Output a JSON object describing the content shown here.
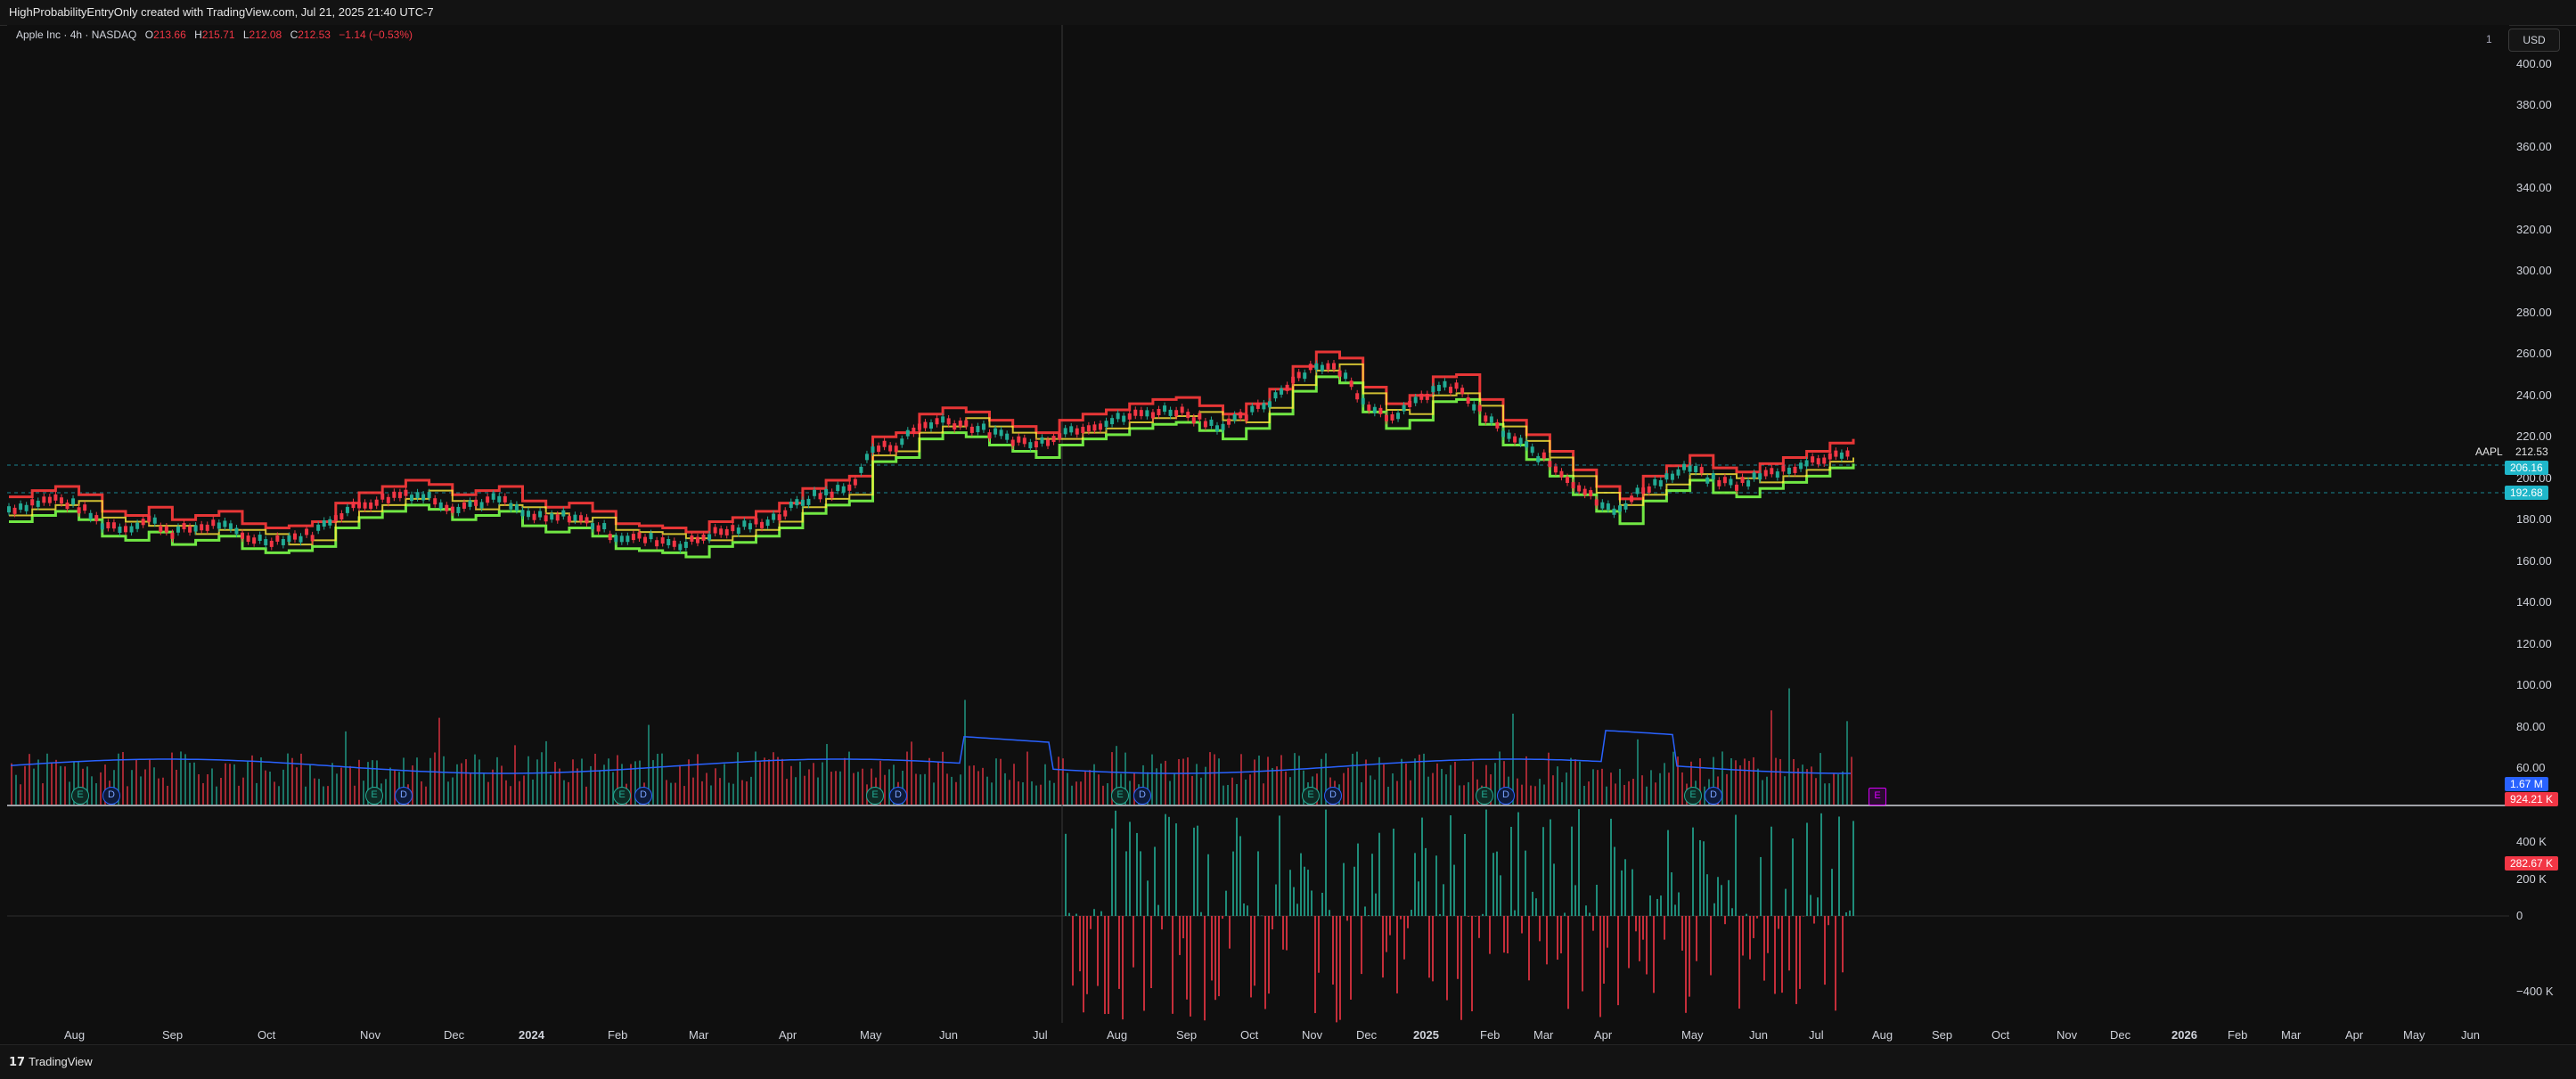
{
  "header": {
    "title": "HighProbabilityEntryOnly created with TradingView.com, Jul 21, 2025 21:40 UTC-7"
  },
  "legend": {
    "symbol": "Apple Inc · 4h · NASDAQ",
    "o_label": "O",
    "o_value": "213.66",
    "h_label": "H",
    "h_value": "215.71",
    "l_label": "L",
    "l_value": "212.08",
    "c_label": "C",
    "c_value": "212.53",
    "change": "−1.14 (−0.53%)"
  },
  "toolbar": {
    "currency": "USD",
    "indicator_count": "1"
  },
  "price_axis": {
    "ticks": [
      "400.00",
      "380.00",
      "360.00",
      "340.00",
      "320.00",
      "300.00",
      "280.00",
      "260.00",
      "240.00",
      "220.00",
      "200.00",
      "180.00",
      "160.00",
      "140.00",
      "120.00",
      "100.00",
      "80.00",
      "60.00"
    ],
    "ticker_label": "AAPL",
    "last_price": "212.53",
    "tag_upper": "206.16",
    "tag_lower": "192.68",
    "vol_tag_blue": "1.67 M",
    "vol_tag_red": "924.21 K",
    "osc_ticks": [
      "400 K",
      "200 K",
      "0",
      "−400 K"
    ],
    "osc_tag": "282.67 K"
  },
  "time_axis": {
    "labels": [
      "Aug",
      "Sep",
      "Oct",
      "Nov",
      "Dec",
      "2024",
      "Feb",
      "Mar",
      "Apr",
      "May",
      "Jun",
      "Jul",
      "Aug",
      "Sep",
      "Oct",
      "Nov",
      "Dec",
      "2025",
      "Feb",
      "Mar",
      "Apr",
      "May",
      "Jun",
      "Jul",
      "Aug",
      "Sep",
      "Oct",
      "Nov",
      "Dec",
      "2026",
      "Feb",
      "Mar",
      "Apr",
      "May",
      "Jun"
    ]
  },
  "events": {
    "earnings_label": "E",
    "dividend_label": "D",
    "future_label": "E"
  },
  "footer": {
    "brand": "TradingView",
    "brand_mark": "17"
  },
  "colors": {
    "up": "#22ab94",
    "down": "#f23645",
    "volume_ma": "#2962ff",
    "trail_red": "#ff3b3b",
    "trail_yellow": "#ffeb3b",
    "trail_green": "#7cff4a",
    "tag_cyan": "#1fb6c9"
  },
  "chart_data": {
    "type": "line",
    "title": "",
    "xlabel": "",
    "ylabel": "",
    "ylim": [
      50,
      410
    ],
    "series": [
      {
        "values": [
          185,
          188,
          190,
          186,
          178,
          176,
          180,
          174,
          176,
          178,
          172,
          170,
          171,
          173,
          182,
          187,
          190,
          193,
          191,
          186,
          188,
          190,
          183,
          180,
          182,
          178,
          172,
          171,
          170,
          168,
          173,
          175,
          178,
          182,
          189,
          193,
          195,
          214,
          216,
          225,
          228,
          226,
          222,
          219,
          216,
          222,
          225,
          227,
          230,
          232,
          233,
          229,
          225,
          230,
          237,
          248,
          255,
          252,
          238,
          230,
          234,
          243,
          244,
          232,
          222,
          215,
          207,
          198,
          190,
          184,
          195,
          200,
          205,
          199,
          197,
          201,
          204,
          207,
          211,
          213
        ]
      }
    ]
  }
}
